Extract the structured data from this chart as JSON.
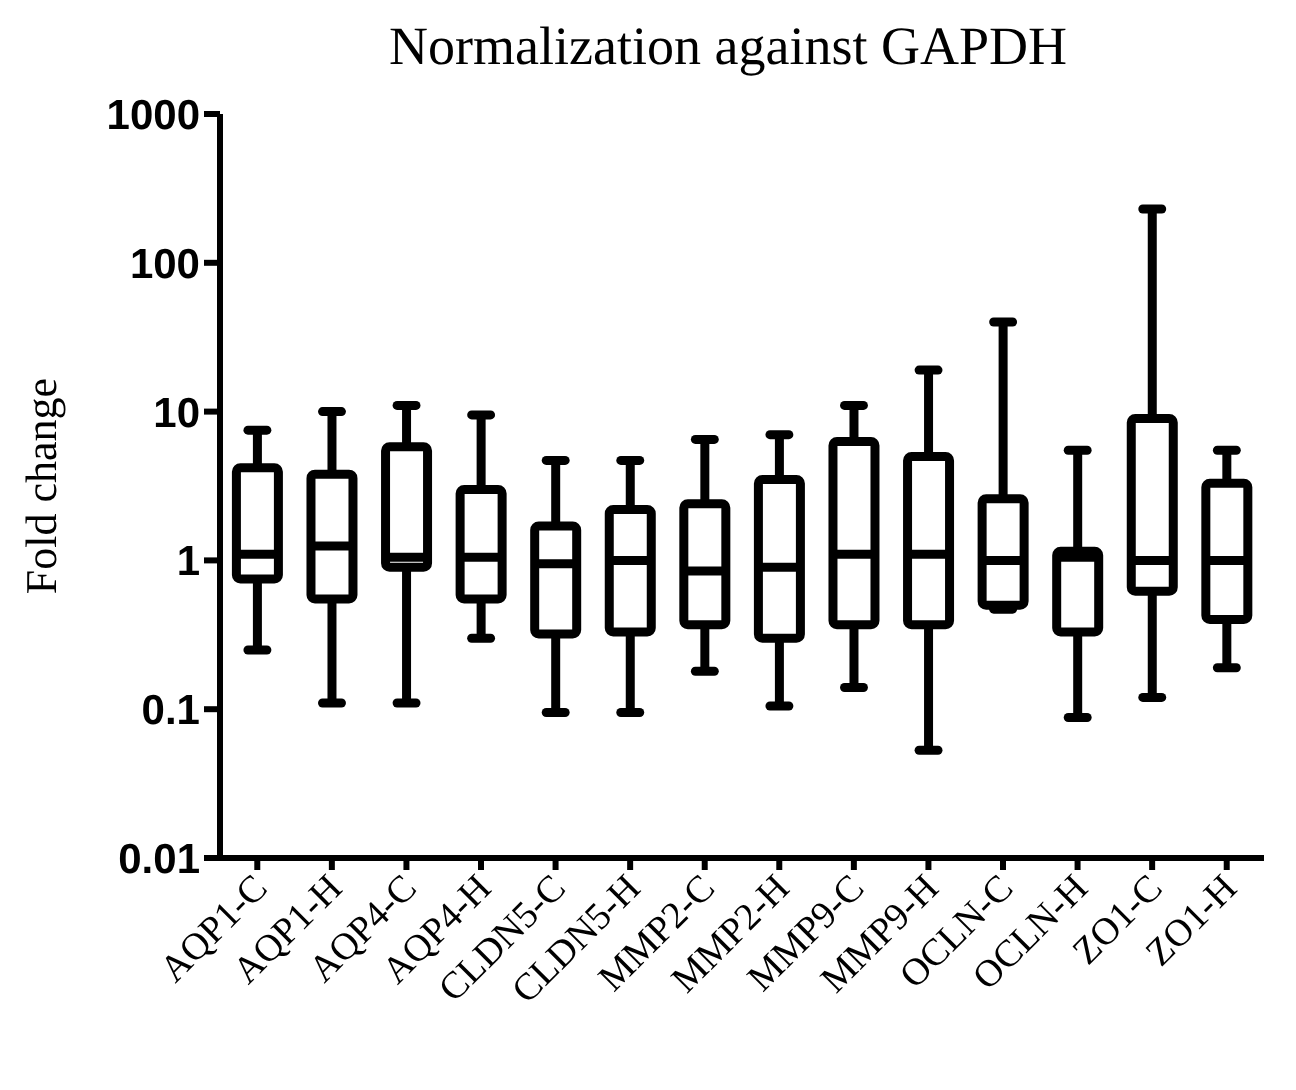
{
  "chart_data": {
    "type": "box",
    "title": "Normalization against GAPDH",
    "ylabel": "Fold change",
    "log": true,
    "color": "#000000",
    "categories": [
      "AQP1-C",
      "AQP1-H",
      "AQP4-C",
      "AQP4-H",
      "CLDN5-C",
      "CLDN5-H",
      "MMP2-C",
      "MMP2-H",
      "MMP9-C",
      "MMP9-H",
      "OCLN-C",
      "OCLN-H",
      "ZO1-C",
      "ZO1-H"
    ],
    "ylim": [
      0.01,
      1000
    ],
    "yticks": [
      0.01,
      0.1,
      1,
      10,
      100,
      1000
    ],
    "boxes": [
      {
        "low": 0.25,
        "q1": 0.75,
        "median": 1.1,
        "q3": 4.2,
        "high": 7.5
      },
      {
        "low": 0.11,
        "q1": 0.55,
        "median": 1.25,
        "q3": 3.8,
        "high": 10
      },
      {
        "low": 0.11,
        "q1": 0.9,
        "median": 1.05,
        "q3": 5.8,
        "high": 11
      },
      {
        "low": 0.3,
        "q1": 0.55,
        "median": 1.05,
        "q3": 3,
        "high": 9.5
      },
      {
        "low": 0.095,
        "q1": 0.32,
        "median": 0.95,
        "q3": 1.7,
        "high": 4.7
      },
      {
        "low": 0.095,
        "q1": 0.33,
        "median": 1,
        "q3": 2.2,
        "high": 4.7
      },
      {
        "low": 0.18,
        "q1": 0.37,
        "median": 0.85,
        "q3": 2.4,
        "high": 6.5
      },
      {
        "low": 0.105,
        "q1": 0.3,
        "median": 0.9,
        "q3": 3.5,
        "high": 7
      },
      {
        "low": 0.14,
        "q1": 0.37,
        "median": 1.1,
        "q3": 6.3,
        "high": 11
      },
      {
        "low": 0.053,
        "q1": 0.37,
        "median": 1.1,
        "q3": 5,
        "high": 19
      },
      {
        "low": 0.47,
        "q1": 0.5,
        "median": 1,
        "q3": 2.6,
        "high": 40
      },
      {
        "low": 0.088,
        "q1": 0.33,
        "median": 1.05,
        "q3": 1.15,
        "high": 5.5
      },
      {
        "low": 0.12,
        "q1": 0.62,
        "median": 1,
        "q3": 9,
        "high": 230
      },
      {
        "low": 0.19,
        "q1": 0.4,
        "median": 1,
        "q3": 3.3,
        "high": 5.5
      }
    ]
  }
}
